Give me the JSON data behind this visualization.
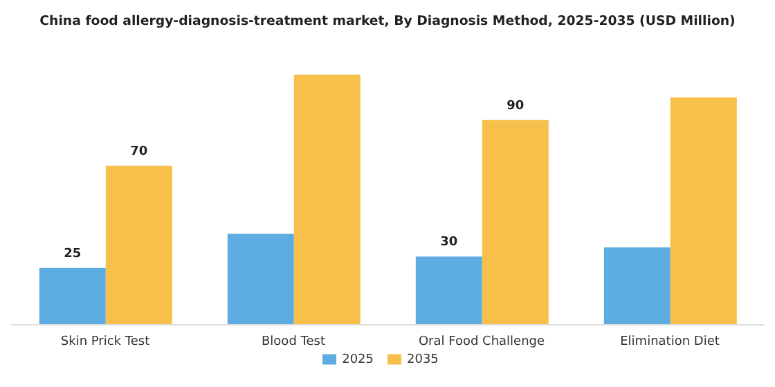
{
  "chart_data": {
    "type": "bar",
    "title": "China food allergy-diagnosis-treatment market, By Diagnosis Method, 2025-2035 (USD Million)",
    "categories": [
      "Skin Prick Test",
      "Blood Test",
      "Oral Food Challenge",
      "Elimination Diet"
    ],
    "series": [
      {
        "name": "2025",
        "color": "#5dade2",
        "values": [
          25,
          40,
          30,
          34
        ],
        "value_labels": [
          "25",
          null,
          "30",
          null
        ]
      },
      {
        "name": "2035",
        "color": "#f7c04a",
        "values": [
          70,
          110,
          90,
          100
        ],
        "value_labels": [
          "70",
          null,
          "90",
          null
        ]
      }
    ],
    "legend": "bottom",
    "grid": false
  }
}
